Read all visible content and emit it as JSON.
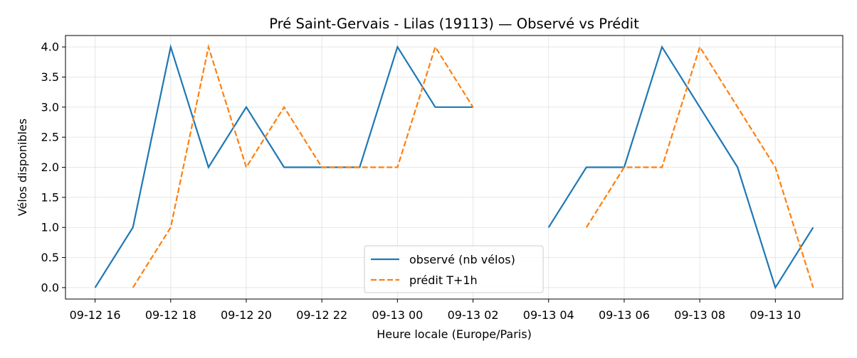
{
  "chart_data": {
    "type": "line",
    "title": "Pré Saint-Gervais - Lilas (19113) — Observé vs Prédit",
    "xlabel": "Heure locale (Europe/Paris)",
    "ylabel": "Vélos disponibles",
    "x": [
      "09-12 16:00",
      "09-12 17:00",
      "09-12 18:00",
      "09-12 19:00",
      "09-12 20:00",
      "09-12 21:00",
      "09-12 22:00",
      "09-12 23:00",
      "09-13 00:00",
      "09-13 01:00",
      "09-13 02:00",
      "09-13 03:00",
      "09-13 04:00",
      "09-13 05:00",
      "09-13 06:00",
      "09-13 07:00",
      "09-13 08:00",
      "09-13 09:00",
      "09-13 10:00",
      "09-13 11:00"
    ],
    "x_ticks": [
      "09-12 16",
      "09-12 18",
      "09-12 20",
      "09-12 22",
      "09-13 00",
      "09-13 02",
      "09-13 04",
      "09-13 06",
      "09-13 08",
      "09-13 10"
    ],
    "x_tick_hours": [
      0,
      2,
      4,
      6,
      8,
      10,
      12,
      14,
      16,
      18
    ],
    "y_ticks": [
      "0.0",
      "0.5",
      "1.0",
      "1.5",
      "2.0",
      "2.5",
      "3.0",
      "3.5",
      "4.0"
    ],
    "ylim": [
      -0.19,
      4.19
    ],
    "xlim": [
      "09-12 15:13",
      "09-13 11:47"
    ],
    "grid": true,
    "legend_position": "bottom-center",
    "series": [
      {
        "name": "observé (nb vélos)",
        "color": "#1f77b4",
        "style": "solid",
        "values": [
          0,
          1,
          4,
          2,
          3,
          2,
          2,
          2,
          4,
          3,
          3,
          null,
          1,
          2,
          2,
          4,
          3,
          2,
          0,
          1
        ]
      },
      {
        "name": "prédit T+1h",
        "color": "#ff7f0e",
        "style": "dashed",
        "values": [
          null,
          0,
          1,
          4,
          2,
          3,
          2,
          2,
          2,
          4,
          3,
          null,
          null,
          1,
          2,
          2,
          4,
          3,
          2,
          0
        ]
      }
    ]
  }
}
